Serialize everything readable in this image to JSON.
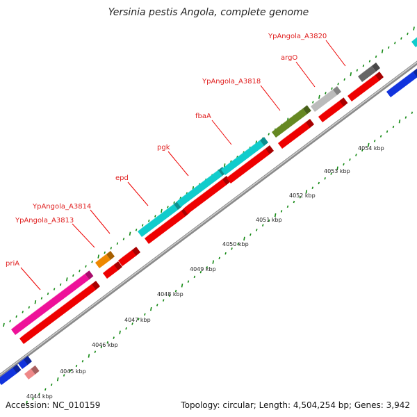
{
  "title": "Yersinia pestis Angola, complete genome",
  "footer": {
    "accession": "Accession: NC_010159",
    "stats": "Topology: circular; Length: 4,504,254 bp; Genes: 3,942"
  },
  "colors": {
    "cds_red": "#ee0000",
    "pink": "#ee1199",
    "orange": "#ee8800",
    "cyan": "#11cccc",
    "olive": "#668822",
    "light_gray": "#bbbbbb",
    "dark_gray": "#666666",
    "blue": "#1133dd",
    "salmon": "#ee8888",
    "backbone": "#8a8a8a",
    "ruler_dots": "#118811"
  },
  "gene_labels": [
    {
      "id": "priA",
      "text": "priA"
    },
    {
      "id": "a3813",
      "text": "YpAngola_A3813"
    },
    {
      "id": "a3814",
      "text": "YpAngola_A3814"
    },
    {
      "id": "epd",
      "text": "epd"
    },
    {
      "id": "pgk",
      "text": "pgk"
    },
    {
      "id": "fbaA",
      "text": "fbaA"
    },
    {
      "id": "a3818",
      "text": "YpAngola_A3818"
    },
    {
      "id": "argO",
      "text": "argO"
    },
    {
      "id": "a3820",
      "text": "YpAngola_A3820"
    }
  ],
  "kbp_ticks": [
    "4044 kbp",
    "4045 kbp",
    "4046 kbp",
    "4047 kbp",
    "4048 kbp",
    "4049 kbp",
    "4050 kbp",
    "4051 kbp",
    "4052 kbp",
    "4053 kbp",
    "4054 kbp"
  ]
}
